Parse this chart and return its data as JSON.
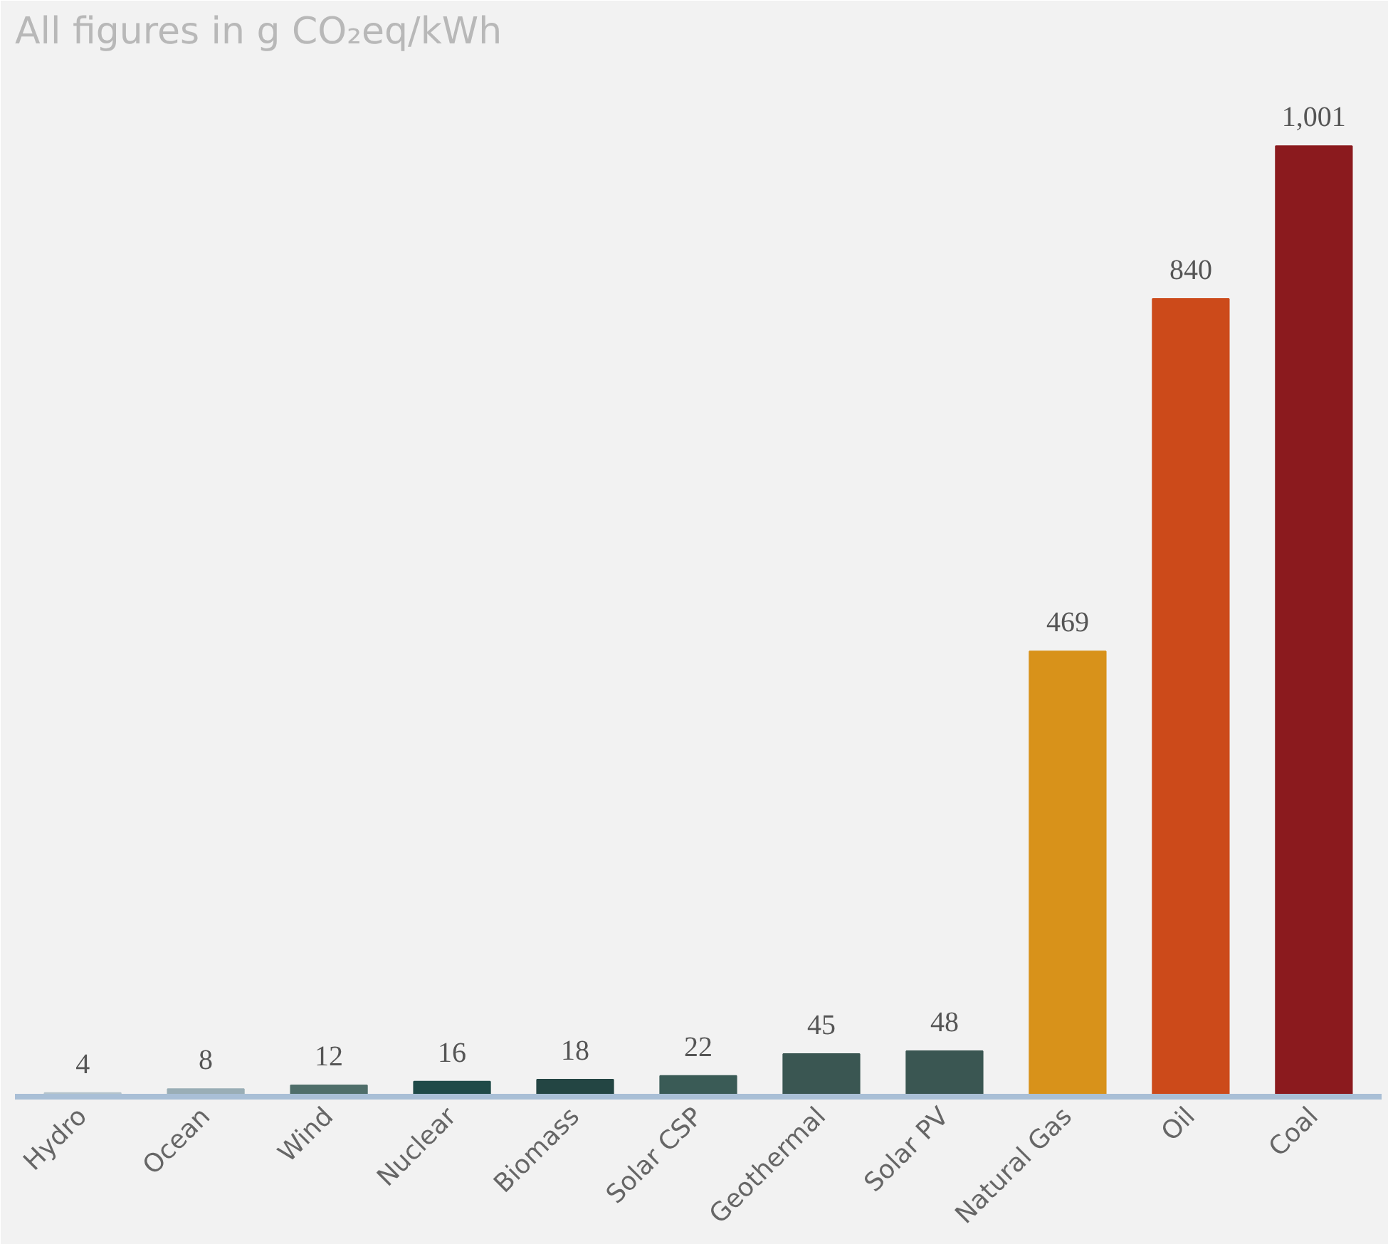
{
  "chart_data": {
    "type": "bar",
    "title": "All figures in g CO₂eq/kWh",
    "categories": [
      "Hydro",
      "Ocean",
      "Wind",
      "Nuclear",
      "Biomass",
      "Solar CSP",
      "Geothermal",
      "Solar PV",
      "Natural Gas",
      "Oil",
      "Coal"
    ],
    "values": [
      4,
      8,
      12,
      16,
      18,
      22,
      45,
      48,
      469,
      840,
      1001
    ],
    "value_labels": [
      "4",
      "8",
      "12",
      "16",
      "18",
      "22",
      "45",
      "48",
      "469",
      "840",
      "1,001"
    ],
    "colors": [
      "#b5c4cc",
      "#9aaeb6",
      "#4f6e6a",
      "#1f4a48",
      "#234543",
      "#3a5b56",
      "#3a5652",
      "#3a5652",
      "#d8921a",
      "#cc4a1a",
      "#8b1a1e"
    ]
  }
}
